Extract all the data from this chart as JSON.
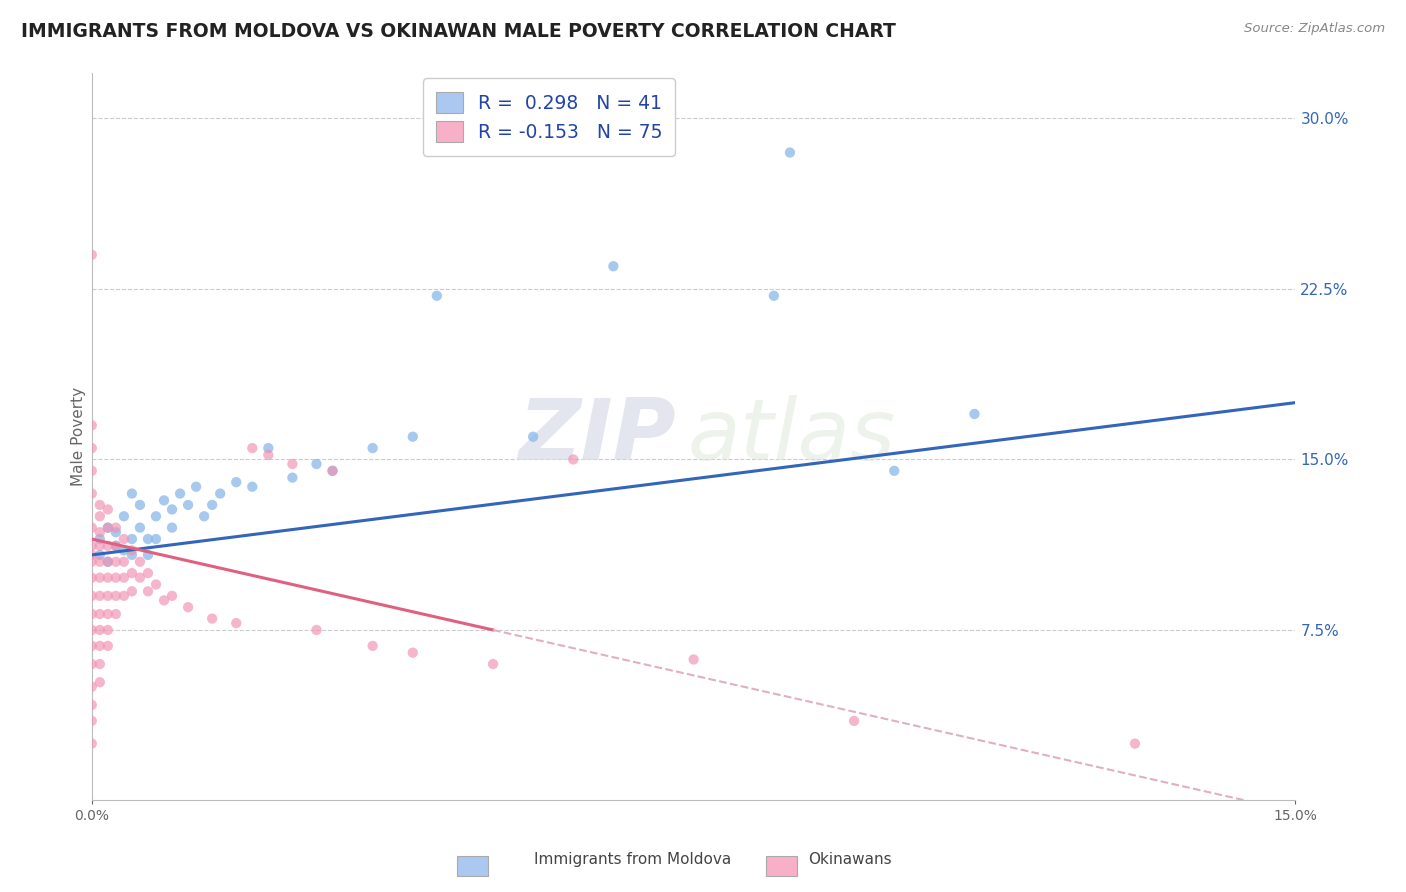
{
  "title": "IMMIGRANTS FROM MOLDOVA VS OKINAWAN MALE POVERTY CORRELATION CHART",
  "source": "Source: ZipAtlas.com",
  "ylabel": "Male Poverty",
  "xlim": [
    0.0,
    0.15
  ],
  "ylim": [
    0.0,
    0.32
  ],
  "xtick_labels": [
    "0.0%",
    "15.0%"
  ],
  "xtick_positions": [
    0.0,
    0.15
  ],
  "ytick_labels": [
    "7.5%",
    "15.0%",
    "22.5%",
    "30.0%"
  ],
  "ytick_positions": [
    0.075,
    0.15,
    0.225,
    0.3
  ],
  "watermark_zip": "ZIP",
  "watermark_atlas": "atlas",
  "legend_color1": "#aac8f0",
  "legend_color2": "#f8b0c8",
  "series1_color": "#88b8e8",
  "series2_color": "#f090b0",
  "trendline1_color": "#3366bb",
  "trendline2_color": "#e06080",
  "trendline2_dashed_color": "#e0b0c0",
  "background_color": "#ffffff",
  "grid_color": "#cccccc",
  "trendline1_x0": 0.0,
  "trendline1_y0": 0.108,
  "trendline1_x1": 0.15,
  "trendline1_y1": 0.175,
  "trendline2_x0": 0.0,
  "trendline2_y0": 0.115,
  "trendline2_x1": 0.05,
  "trendline2_y1": 0.075,
  "trendline2_dash_x0": 0.05,
  "trendline2_dash_x1": 0.15,
  "series1_pts": [
    [
      0.001,
      0.115
    ],
    [
      0.001,
      0.108
    ],
    [
      0.002,
      0.12
    ],
    [
      0.002,
      0.105
    ],
    [
      0.003,
      0.118
    ],
    [
      0.003,
      0.112
    ],
    [
      0.004,
      0.11
    ],
    [
      0.004,
      0.125
    ],
    [
      0.005,
      0.108
    ],
    [
      0.005,
      0.115
    ],
    [
      0.005,
      0.135
    ],
    [
      0.006,
      0.12
    ],
    [
      0.006,
      0.13
    ],
    [
      0.007,
      0.115
    ],
    [
      0.007,
      0.108
    ],
    [
      0.008,
      0.125
    ],
    [
      0.008,
      0.115
    ],
    [
      0.009,
      0.132
    ],
    [
      0.01,
      0.128
    ],
    [
      0.01,
      0.12
    ],
    [
      0.011,
      0.135
    ],
    [
      0.012,
      0.13
    ],
    [
      0.013,
      0.138
    ],
    [
      0.014,
      0.125
    ],
    [
      0.015,
      0.13
    ],
    [
      0.016,
      0.135
    ],
    [
      0.018,
      0.14
    ],
    [
      0.02,
      0.138
    ],
    [
      0.022,
      0.155
    ],
    [
      0.025,
      0.142
    ],
    [
      0.028,
      0.148
    ],
    [
      0.03,
      0.145
    ],
    [
      0.035,
      0.155
    ],
    [
      0.04,
      0.16
    ],
    [
      0.043,
      0.222
    ],
    [
      0.055,
      0.16
    ],
    [
      0.065,
      0.235
    ],
    [
      0.085,
      0.222
    ],
    [
      0.087,
      0.285
    ],
    [
      0.1,
      0.145
    ],
    [
      0.11,
      0.17
    ]
  ],
  "series2_pts": [
    [
      0.0,
      0.135
    ],
    [
      0.0,
      0.145
    ],
    [
      0.0,
      0.155
    ],
    [
      0.0,
      0.165
    ],
    [
      0.0,
      0.12
    ],
    [
      0.0,
      0.112
    ],
    [
      0.0,
      0.108
    ],
    [
      0.0,
      0.105
    ],
    [
      0.0,
      0.098
    ],
    [
      0.0,
      0.09
    ],
    [
      0.0,
      0.082
    ],
    [
      0.0,
      0.075
    ],
    [
      0.0,
      0.068
    ],
    [
      0.0,
      0.06
    ],
    [
      0.0,
      0.05
    ],
    [
      0.0,
      0.042
    ],
    [
      0.0,
      0.035
    ],
    [
      0.0,
      0.025
    ],
    [
      0.0,
      0.24
    ],
    [
      0.001,
      0.13
    ],
    [
      0.001,
      0.125
    ],
    [
      0.001,
      0.118
    ],
    [
      0.001,
      0.112
    ],
    [
      0.001,
      0.105
    ],
    [
      0.001,
      0.098
    ],
    [
      0.001,
      0.09
    ],
    [
      0.001,
      0.082
    ],
    [
      0.001,
      0.075
    ],
    [
      0.001,
      0.068
    ],
    [
      0.001,
      0.06
    ],
    [
      0.001,
      0.052
    ],
    [
      0.002,
      0.128
    ],
    [
      0.002,
      0.12
    ],
    [
      0.002,
      0.112
    ],
    [
      0.002,
      0.105
    ],
    [
      0.002,
      0.098
    ],
    [
      0.002,
      0.09
    ],
    [
      0.002,
      0.082
    ],
    [
      0.002,
      0.075
    ],
    [
      0.002,
      0.068
    ],
    [
      0.003,
      0.12
    ],
    [
      0.003,
      0.112
    ],
    [
      0.003,
      0.105
    ],
    [
      0.003,
      0.098
    ],
    [
      0.003,
      0.09
    ],
    [
      0.003,
      0.082
    ],
    [
      0.004,
      0.115
    ],
    [
      0.004,
      0.105
    ],
    [
      0.004,
      0.098
    ],
    [
      0.004,
      0.09
    ],
    [
      0.005,
      0.11
    ],
    [
      0.005,
      0.1
    ],
    [
      0.005,
      0.092
    ],
    [
      0.006,
      0.105
    ],
    [
      0.006,
      0.098
    ],
    [
      0.007,
      0.1
    ],
    [
      0.007,
      0.092
    ],
    [
      0.008,
      0.095
    ],
    [
      0.009,
      0.088
    ],
    [
      0.01,
      0.09
    ],
    [
      0.012,
      0.085
    ],
    [
      0.015,
      0.08
    ],
    [
      0.018,
      0.078
    ],
    [
      0.02,
      0.155
    ],
    [
      0.022,
      0.152
    ],
    [
      0.025,
      0.148
    ],
    [
      0.028,
      0.075
    ],
    [
      0.03,
      0.145
    ],
    [
      0.035,
      0.068
    ],
    [
      0.04,
      0.065
    ],
    [
      0.05,
      0.06
    ],
    [
      0.06,
      0.15
    ],
    [
      0.075,
      0.062
    ],
    [
      0.095,
      0.035
    ],
    [
      0.13,
      0.025
    ]
  ]
}
